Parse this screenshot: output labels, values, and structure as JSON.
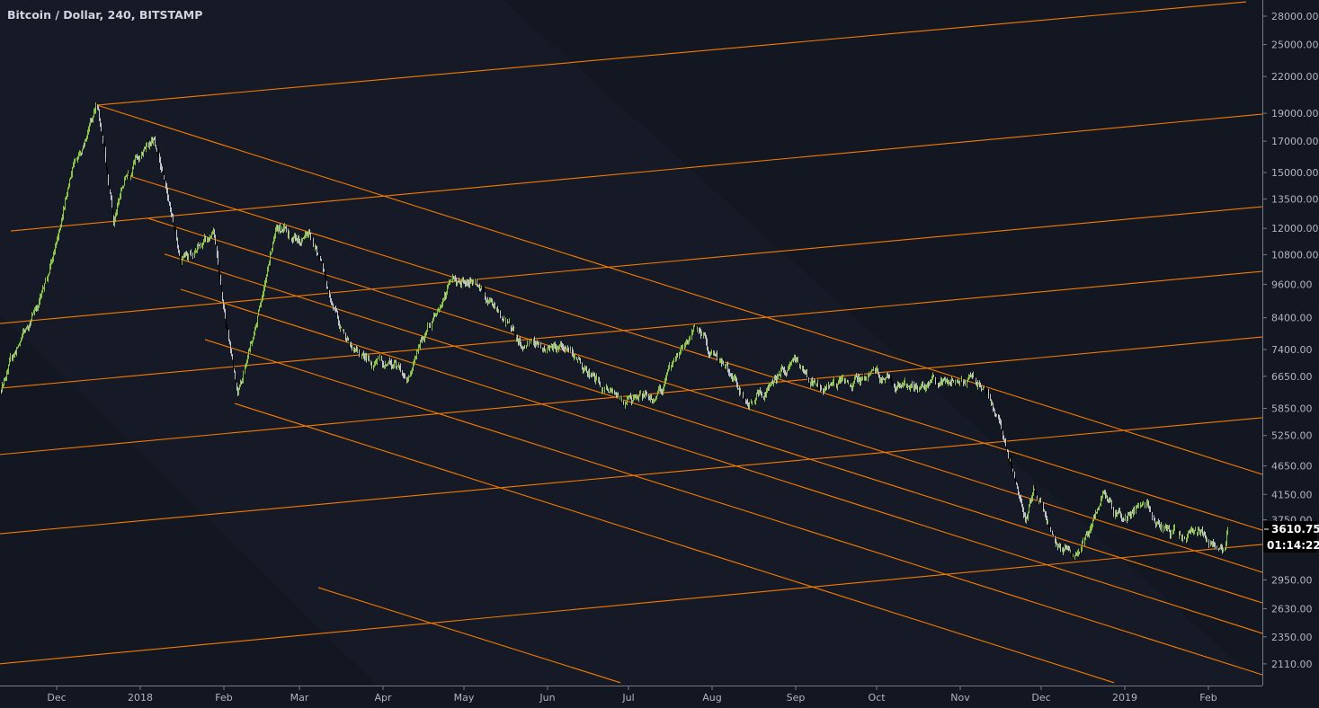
{
  "header": {
    "title": "Bitcoin / Dollar, 240, BITSTAMP"
  },
  "colors": {
    "background": "#131722",
    "lines": "#f57c00",
    "up": "#8bc34a",
    "down": "#c0c3c8",
    "axis": "#787b86",
    "text": "#b2b5be"
  },
  "last_price": {
    "value": "3610.75",
    "countdown": "01:14:22"
  },
  "chart_data": {
    "type": "candlestick",
    "title": "Bitcoin / Dollar, 240, BITSTAMP",
    "interval": "240",
    "yscale": "log",
    "grid": false,
    "ylim": [
      1980,
      30000
    ],
    "xlim": [
      "2017-11-10",
      "2019-02-24"
    ],
    "y_ticks": [
      "28000.00",
      "25000.00",
      "22000.00",
      "19000.00",
      "17000.00",
      "15000.00",
      "13500.00",
      "12000.00",
      "10800.00",
      "9600.00",
      "8400.00",
      "7400.00",
      "6650.00",
      "5850.00",
      "5250.00",
      "4650.00",
      "4150.00",
      "3750.00",
      "2950.00",
      "2630.00",
      "2350.00",
      "2110.00"
    ],
    "x_ticks": [
      {
        "label": "Dec",
        "date": "2017-12-01"
      },
      {
        "label": "2018",
        "date": "2018-01-01"
      },
      {
        "label": "Feb",
        "date": "2018-02-01"
      },
      {
        "label": "Mar",
        "date": "2018-03-01"
      },
      {
        "label": "Apr",
        "date": "2018-04-01"
      },
      {
        "label": "May",
        "date": "2018-05-01"
      },
      {
        "label": "Jun",
        "date": "2018-06-01"
      },
      {
        "label": "Jul",
        "date": "2018-07-01"
      },
      {
        "label": "Aug",
        "date": "2018-08-01"
      },
      {
        "label": "Sep",
        "date": "2018-09-01"
      },
      {
        "label": "Oct",
        "date": "2018-10-01"
      },
      {
        "label": "Nov",
        "date": "2018-11-01"
      },
      {
        "label": "Dec",
        "date": "2018-12-01"
      },
      {
        "label": "2019",
        "date": "2019-01-01"
      },
      {
        "label": "Feb",
        "date": "2019-02-01"
      }
    ],
    "price_path": [
      [
        "2017-11-10",
        6380
      ],
      [
        "2017-11-20",
        8100
      ],
      [
        "2017-11-29",
        10500
      ],
      [
        "2017-12-07",
        15500
      ],
      [
        "2017-12-16",
        19600
      ],
      [
        "2017-12-22",
        12500
      ],
      [
        "2017-12-27",
        15000
      ],
      [
        "2018-01-06",
        16900
      ],
      [
        "2018-01-16",
        10800
      ],
      [
        "2018-01-28",
        11500
      ],
      [
        "2018-02-06",
        6000
      ],
      [
        "2018-02-20",
        11700
      ],
      [
        "2018-03-05",
        11500
      ],
      [
        "2018-03-18",
        7600
      ],
      [
        "2018-04-01",
        6900
      ],
      [
        "2018-04-10",
        6800
      ],
      [
        "2018-04-25",
        9400
      ],
      [
        "2018-05-05",
        9700
      ],
      [
        "2018-05-23",
        7500
      ],
      [
        "2018-06-10",
        7400
      ],
      [
        "2018-06-20",
        6450
      ],
      [
        "2018-06-29",
        5900
      ],
      [
        "2018-07-14",
        6300
      ],
      [
        "2018-07-25",
        8200
      ],
      [
        "2018-08-10",
        6300
      ],
      [
        "2018-08-14",
        6000
      ],
      [
        "2018-08-30",
        7000
      ],
      [
        "2018-09-06",
        6400
      ],
      [
        "2018-10-01",
        6600
      ],
      [
        "2018-10-15",
        6450
      ],
      [
        "2018-11-10",
        6400
      ],
      [
        "2018-11-15",
        5500
      ],
      [
        "2018-11-20",
        4700
      ],
      [
        "2018-11-25",
        3750
      ],
      [
        "2018-11-28",
        4200
      ],
      [
        "2018-12-07",
        3450
      ],
      [
        "2018-12-15",
        3200
      ],
      [
        "2018-12-24",
        4100
      ],
      [
        "2019-01-01",
        3800
      ],
      [
        "2019-01-08",
        4050
      ],
      [
        "2019-01-15",
        3600
      ],
      [
        "2019-01-31",
        3450
      ],
      [
        "2019-02-07",
        3400
      ],
      [
        "2019-02-08",
        3610.75
      ]
    ],
    "trend_lines": [
      {
        "from": [
          "2017-12-16",
          19630
        ],
        "to": [
          "2019-02-15",
          29650
        ]
      },
      {
        "from": [
          "2017-11-14",
          11880
        ],
        "to": [
          "2019-02-21",
          18940
        ]
      },
      {
        "from": [
          "2017-11-10",
          8210
        ],
        "to": [
          "2019-02-21",
          13090
        ]
      },
      {
        "from": [
          "2017-11-10",
          6340
        ],
        "to": [
          "2019-02-21",
          10110
        ]
      },
      {
        "from": [
          "2017-11-10",
          4866
        ],
        "to": [
          "2019-02-21",
          7780
        ]
      },
      {
        "from": [
          "2017-11-10",
          3547
        ],
        "to": [
          "2019-02-21",
          5637
        ]
      },
      {
        "from": [
          "2017-11-10",
          2110
        ],
        "to": [
          "2019-02-21",
          3399
        ]
      },
      {
        "from": [
          "2017-12-16",
          19630
        ],
        "to": [
          "2019-02-21",
          4495
        ]
      },
      {
        "from": [
          "2017-12-27",
          14840
        ],
        "to": [
          "2019-02-21",
          3598
        ]
      },
      {
        "from": [
          "2018-01-04",
          12490
        ],
        "to": [
          "2019-02-21",
          3041
        ]
      },
      {
        "from": [
          "2018-01-10",
          10830
        ],
        "to": [
          "2019-02-21",
          2691
        ]
      },
      {
        "from": [
          "2018-01-16",
          9410
        ],
        "to": [
          "2019-02-21",
          2383
        ]
      },
      {
        "from": [
          "2018-01-25",
          7700
        ],
        "to": [
          "2019-02-21",
          2020
        ]
      },
      {
        "from": [
          "2018-02-05",
          5966
        ],
        "to": [
          "2018-12-28",
          1957
        ]
      },
      {
        "from": [
          "2018-03-08",
          2861
        ],
        "to": [
          "2018-06-28",
          1957
        ]
      }
    ]
  }
}
